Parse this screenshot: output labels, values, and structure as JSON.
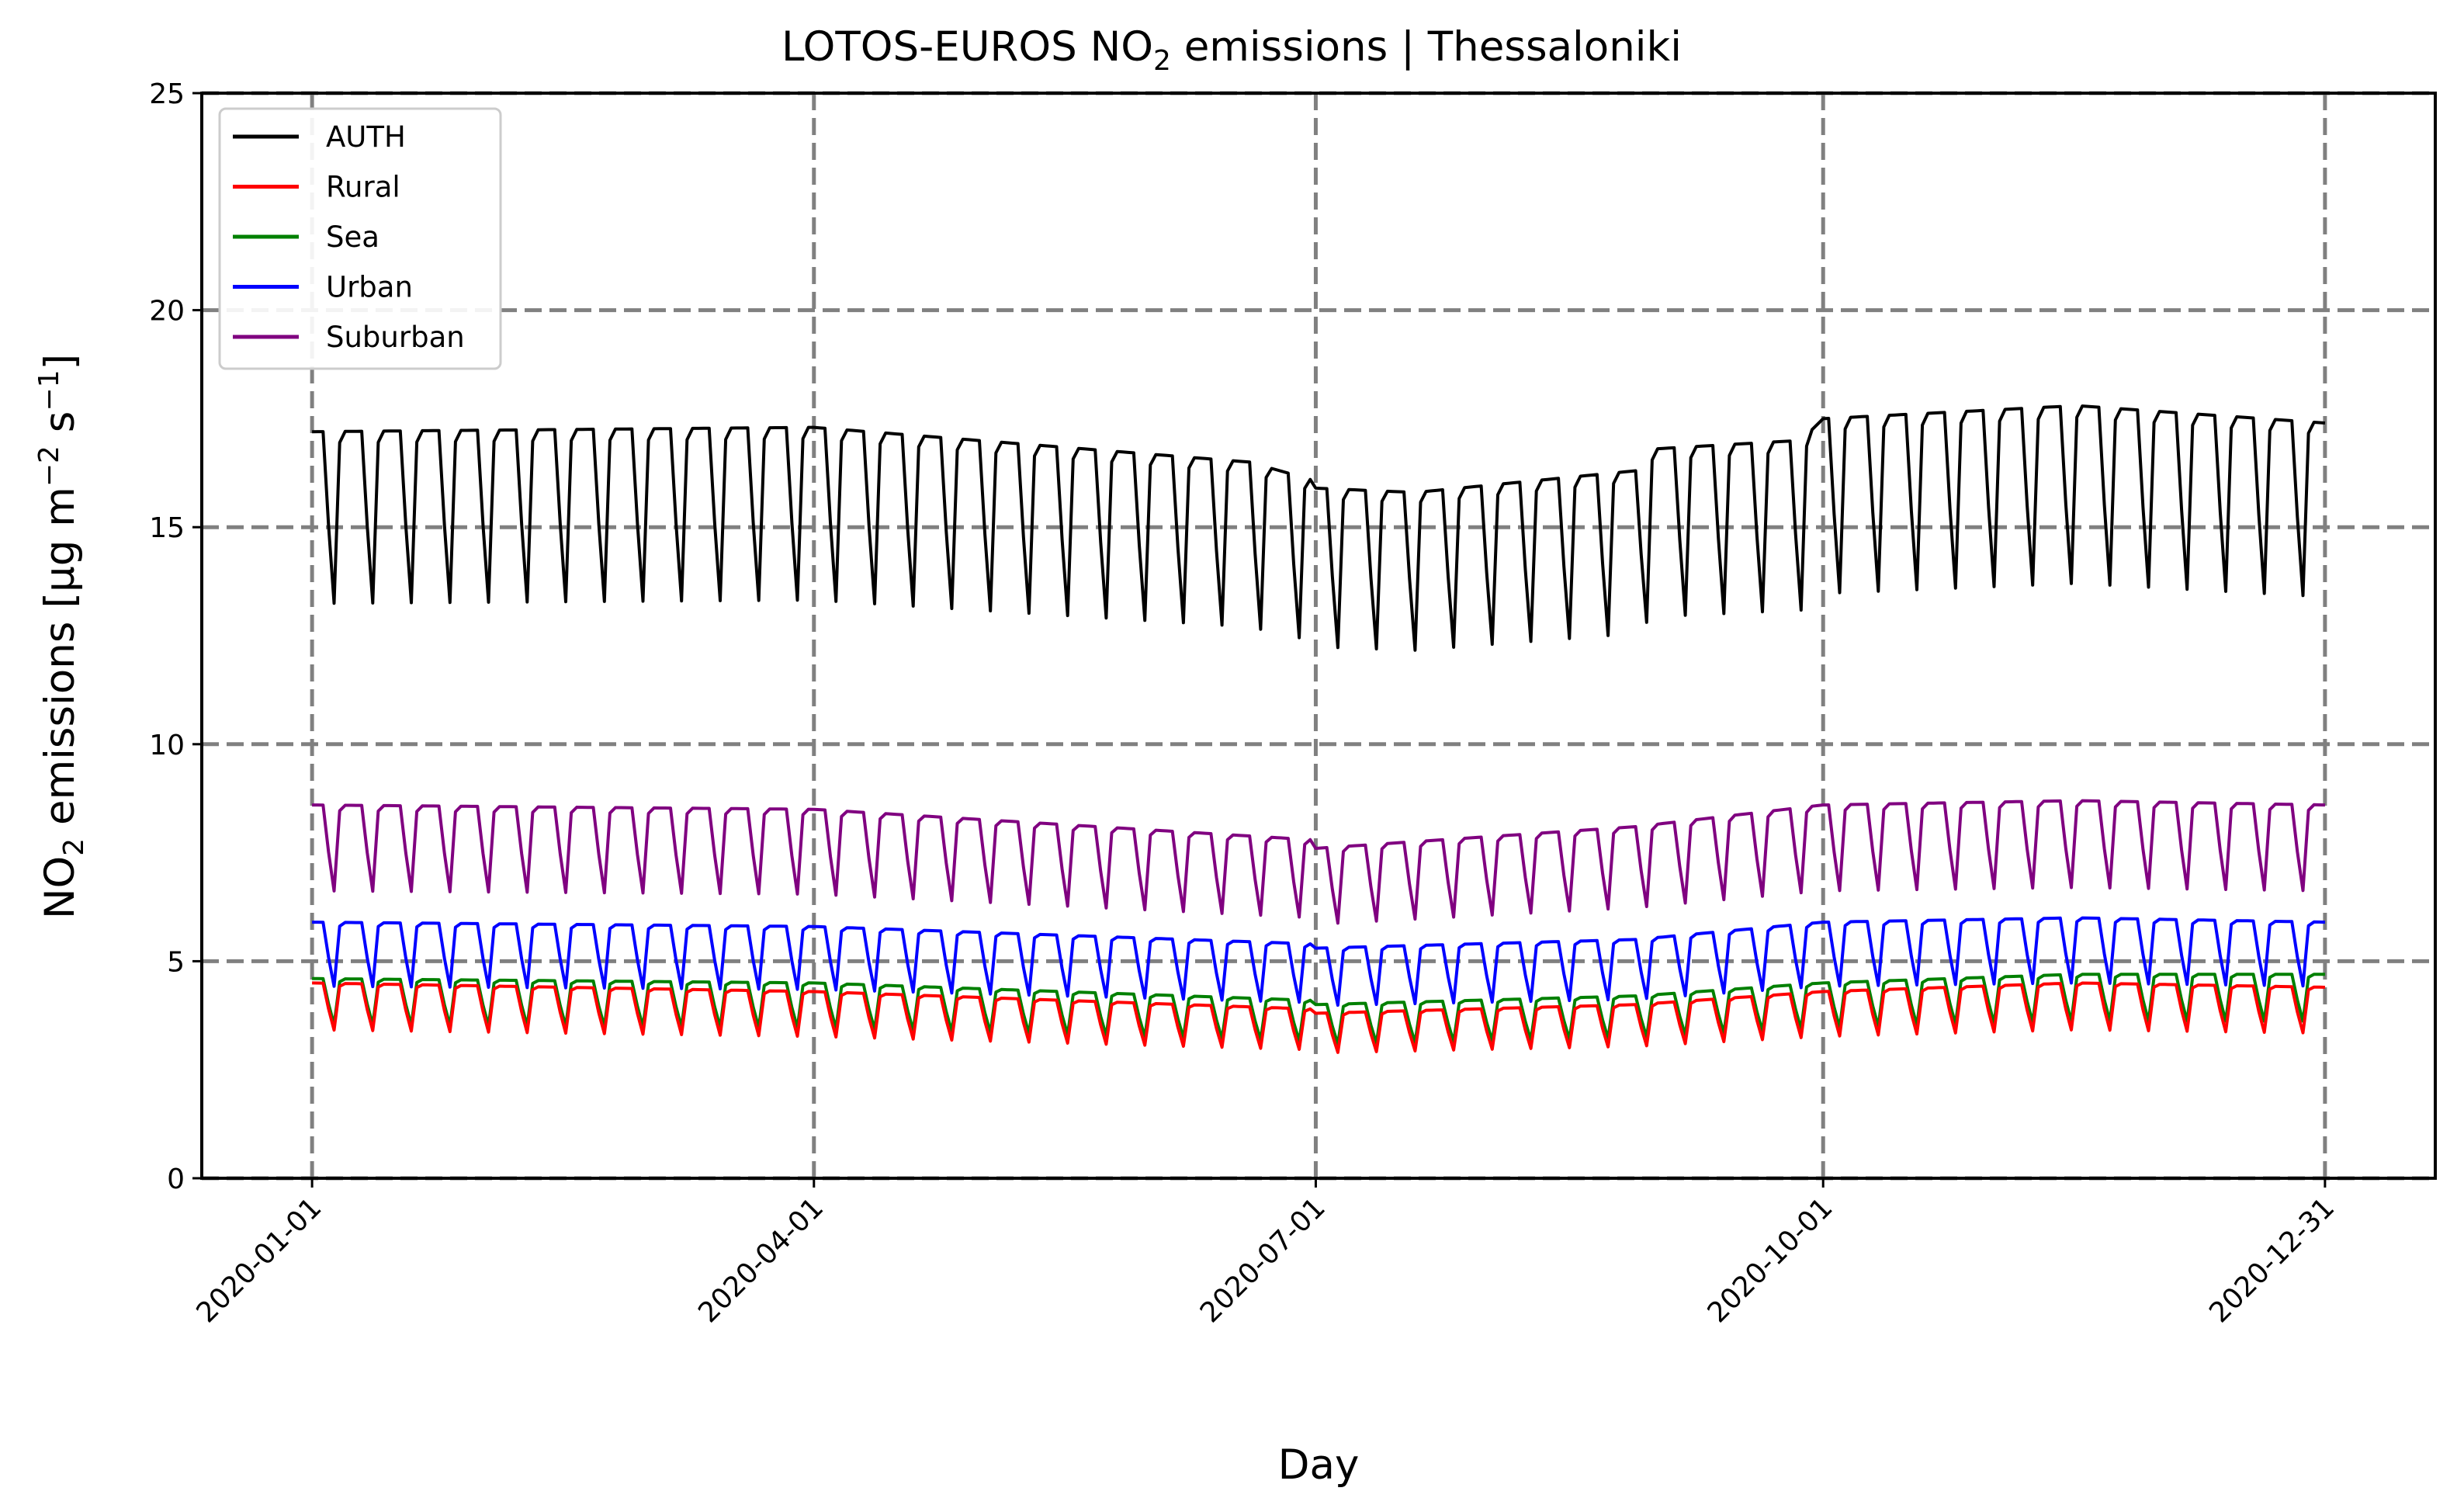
{
  "chart_data": {
    "type": "line",
    "title": "LOTOS-EUROS NO₂ emissions | Thessaloniki",
    "title_parts": {
      "pre": "LOTOS-EUROS NO",
      "sub": "2",
      "post": " emissions | Thessaloniki"
    },
    "xlabel": "Day",
    "ylabel": "NO₂ emissions [μg m⁻² s⁻¹]",
    "ylabel_parts": {
      "a": "NO",
      "a_sub": "2",
      "b": " emissions [μg m",
      "b_sup": "−2",
      "c": " s",
      "c_sup": "−1",
      "d": "]"
    },
    "ylim": [
      0,
      25
    ],
    "y_ticks": [
      0,
      5,
      10,
      15,
      20,
      25
    ],
    "x_range_days": [
      -20,
      385
    ],
    "x_ticks": [
      {
        "day": 0,
        "label": "2020-01-01"
      },
      {
        "day": 91,
        "label": "2020-04-01"
      },
      {
        "day": 182,
        "label": "2020-07-01"
      },
      {
        "day": 274,
        "label": "2020-10-01"
      },
      {
        "day": 365,
        "label": "2020-12-31"
      }
    ],
    "grid": true,
    "legend_position": "top-left",
    "x": "daily, 2020-01-01 to 2020-12-31 (366 days); weekday level follows seasonal envelope, Saturday/Sunday values drop to the weekend level",
    "series": [
      {
        "name": "AUTH",
        "color": "#000000",
        "envelope_knots": [
          [
            0,
            17.2
          ],
          [
            91,
            17.3
          ],
          [
            170,
            16.5
          ],
          [
            181,
            16.1
          ],
          [
            182,
            15.9
          ],
          [
            200,
            15.8
          ],
          [
            240,
            16.3
          ],
          [
            243,
            16.8
          ],
          [
            270,
            17.0
          ],
          [
            274,
            17.5
          ],
          [
            320,
            17.8
          ],
          [
            365,
            17.4
          ]
        ],
        "weekend_ratio": 0.77
      },
      {
        "name": "Rural",
        "color": "#ff0000",
        "envelope_knots": [
          [
            0,
            4.5
          ],
          [
            91,
            4.3
          ],
          [
            181,
            3.9
          ],
          [
            182,
            3.8
          ],
          [
            240,
            4.0
          ],
          [
            274,
            4.3
          ],
          [
            320,
            4.5
          ],
          [
            365,
            4.4
          ]
        ],
        "weekend_ratio": 0.76
      },
      {
        "name": "Sea",
        "color": "#008000",
        "envelope_knots": [
          [
            0,
            4.6
          ],
          [
            91,
            4.5
          ],
          [
            181,
            4.1
          ],
          [
            182,
            4.0
          ],
          [
            240,
            4.2
          ],
          [
            274,
            4.5
          ],
          [
            320,
            4.7
          ],
          [
            365,
            4.7
          ]
        ],
        "weekend_ratio": 0.77
      },
      {
        "name": "Urban",
        "color": "#0000ff",
        "envelope_knots": [
          [
            0,
            5.9
          ],
          [
            91,
            5.8
          ],
          [
            181,
            5.4
          ],
          [
            182,
            5.3
          ],
          [
            240,
            5.5
          ],
          [
            274,
            5.9
          ],
          [
            320,
            6.0
          ],
          [
            365,
            5.9
          ]
        ],
        "weekend_ratio": 0.75
      },
      {
        "name": "Suburban",
        "color": "#800080",
        "envelope_knots": [
          [
            0,
            8.6
          ],
          [
            91,
            8.5
          ],
          [
            181,
            7.8
          ],
          [
            182,
            7.6
          ],
          [
            240,
            8.1
          ],
          [
            274,
            8.6
          ],
          [
            320,
            8.7
          ],
          [
            365,
            8.6
          ]
        ],
        "weekend_ratio": 0.77
      }
    ]
  }
}
